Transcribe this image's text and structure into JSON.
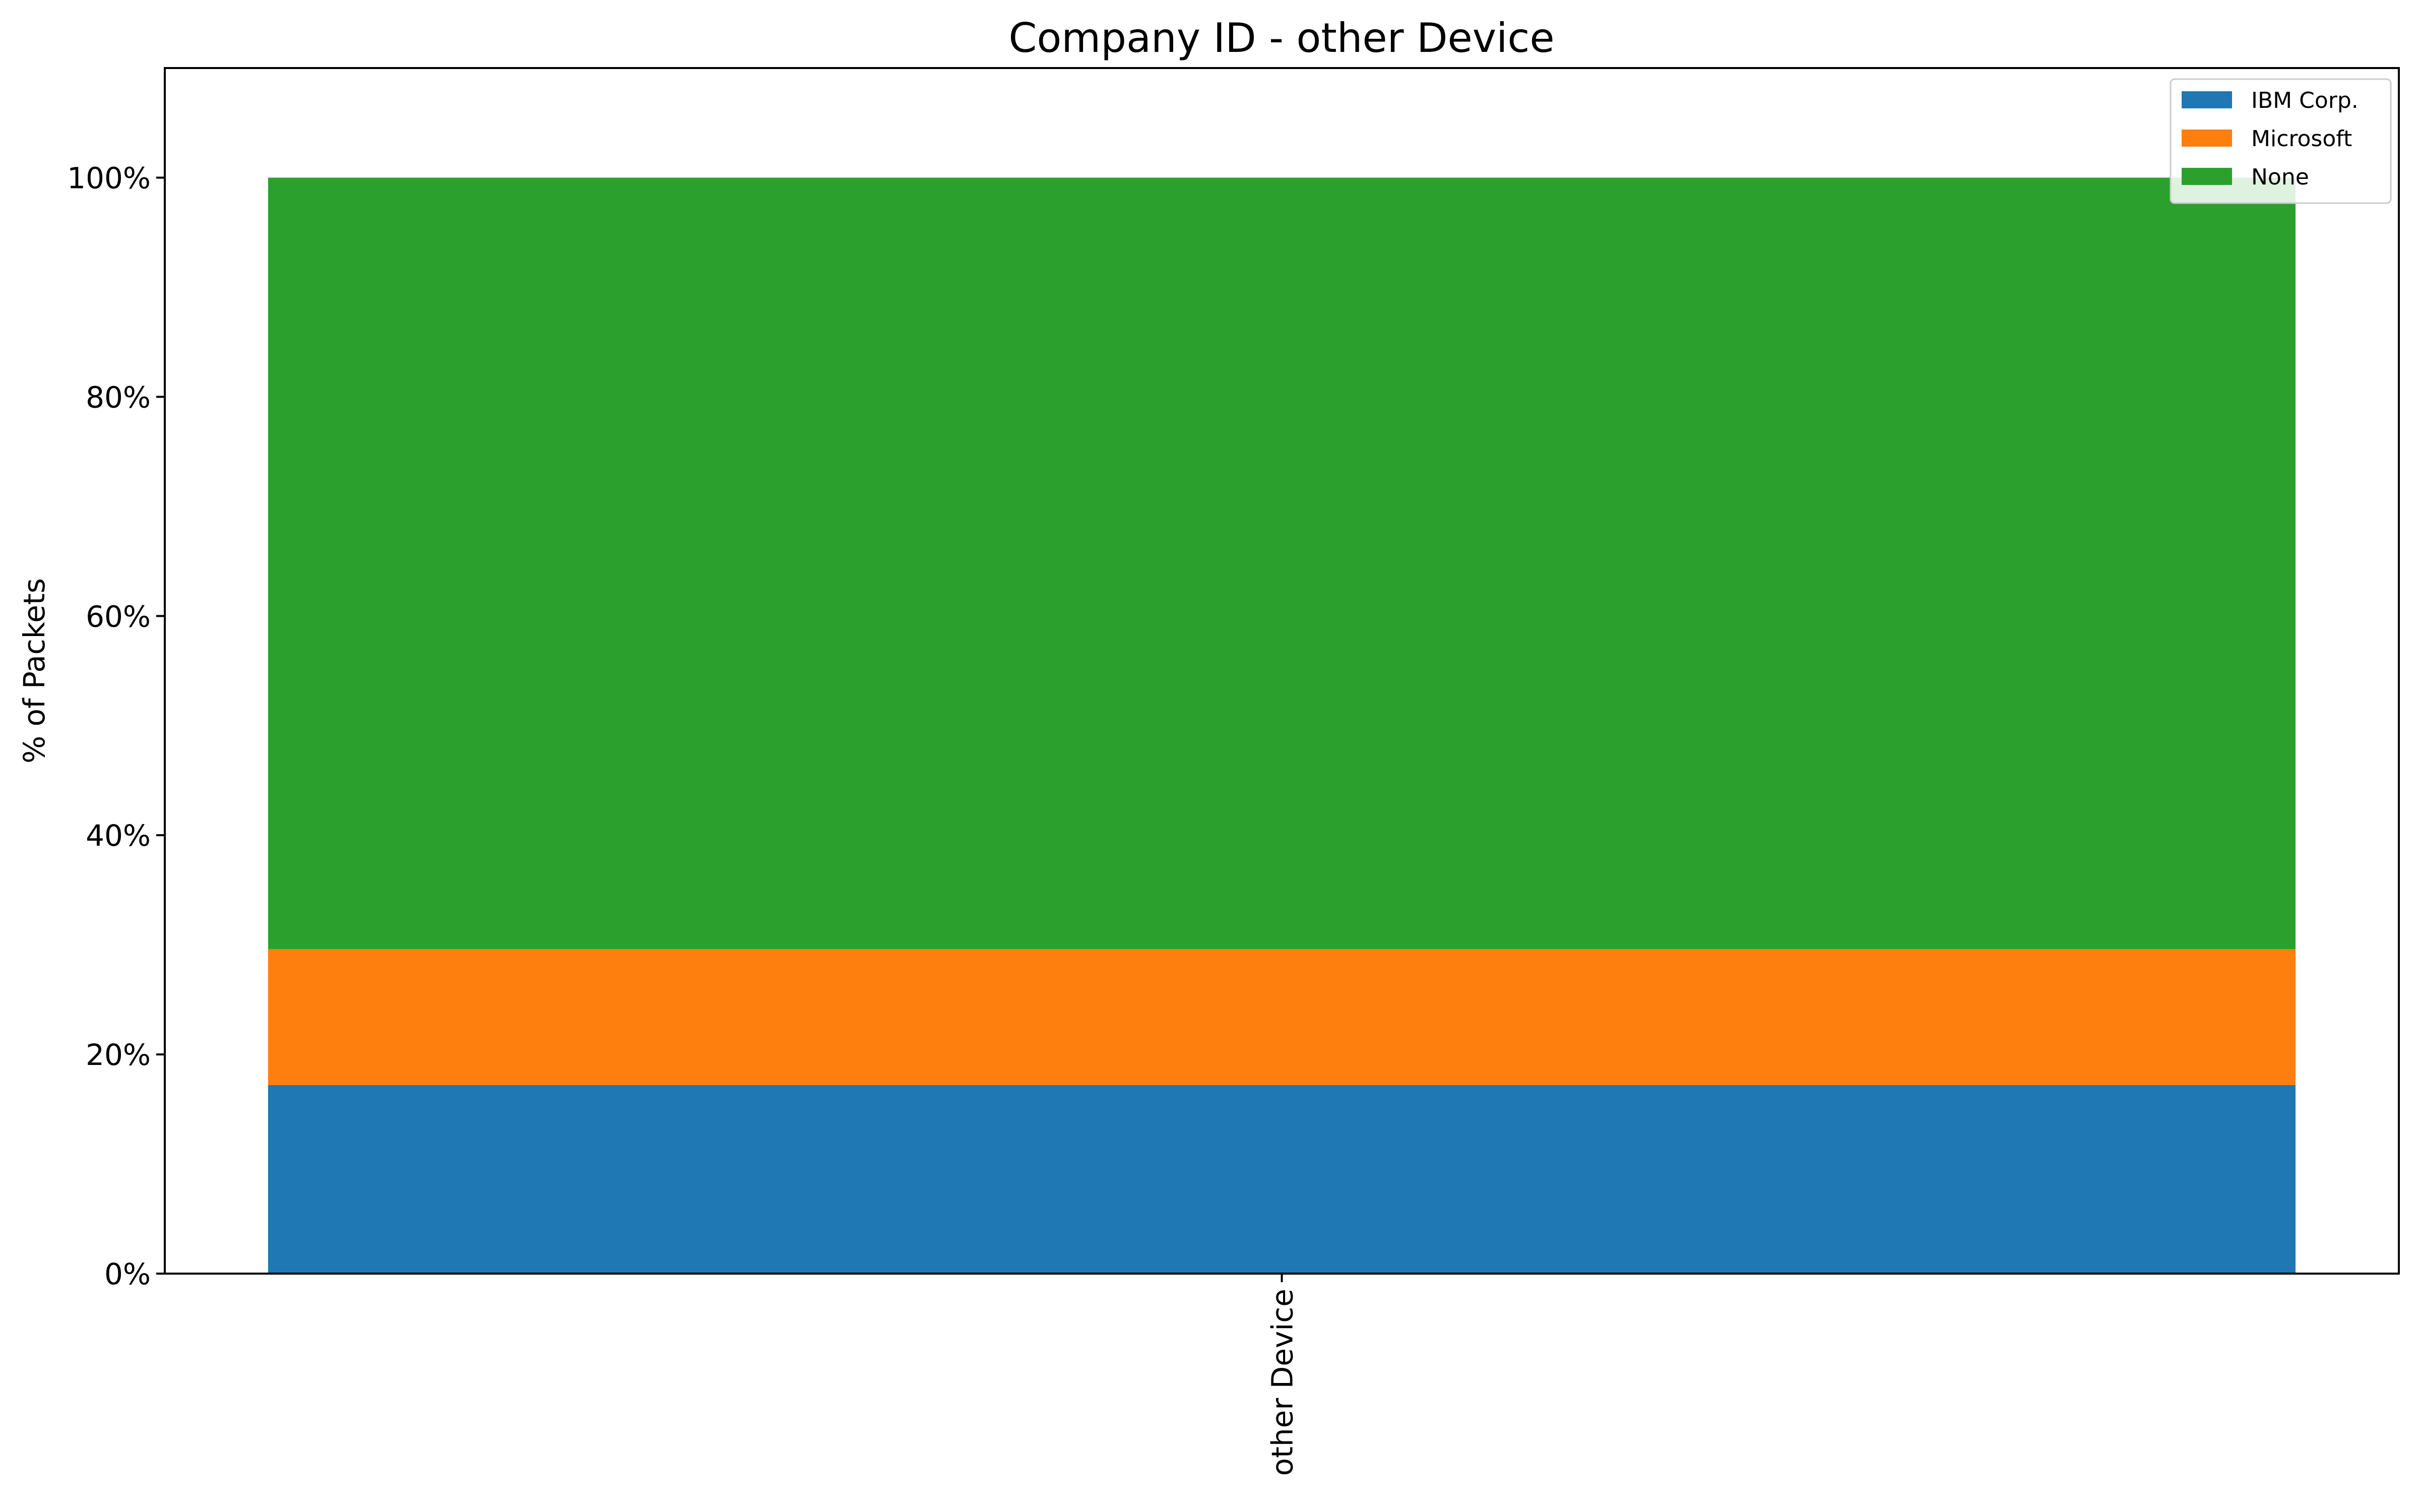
{
  "chart_data": {
    "type": "bar",
    "stacked": true,
    "title": "Company ID - other Device",
    "xlabel": "",
    "ylabel": "% of Packets",
    "categories": [
      "other Device"
    ],
    "ylim": [
      0,
      110
    ],
    "yticks": [
      0,
      20,
      40,
      60,
      80,
      100
    ],
    "ytick_labels": [
      "0%",
      "20%",
      "40%",
      "60%",
      "80%",
      "100%"
    ],
    "grid": false,
    "legend_position": "top-right",
    "series": [
      {
        "name": "IBM Corp.",
        "values": [
          17.2
        ],
        "color": "#1f77b4"
      },
      {
        "name": "Microsoft",
        "values": [
          12.4
        ],
        "color": "#ff7f0e"
      },
      {
        "name": "None",
        "values": [
          70.4
        ],
        "color": "#2ca02c"
      }
    ]
  }
}
